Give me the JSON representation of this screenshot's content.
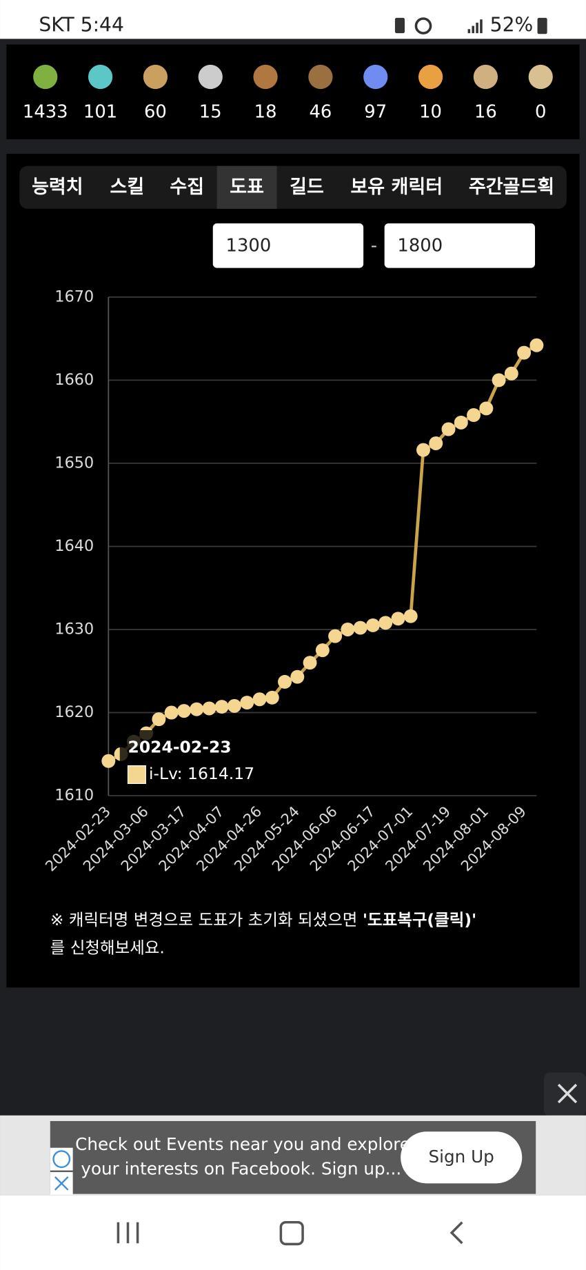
{
  "status_bar": {
    "carrier_time": "SKT 5:44",
    "battery": "52%"
  },
  "items": [
    1433,
    101,
    60,
    15,
    18,
    46,
    97,
    10,
    16,
    0
  ],
  "tabs": [
    "능력치",
    "스킬",
    "수집",
    "도표",
    "길드",
    "보유 캐릭터",
    "주간골드획"
  ],
  "range": {
    "min": "1300",
    "separator": "-",
    "max": "1800"
  },
  "chart_data": {
    "type": "line",
    "color": "#c9a44a",
    "categories": [
      "2024-02-23",
      null,
      null,
      "2024-03-06",
      null,
      null,
      "2024-03-17",
      null,
      null,
      "2024-04-07",
      null,
      null,
      "2024-04-26",
      null,
      null,
      "2024-05-24",
      null,
      null,
      "2024-06-06",
      null,
      null,
      "2024-06-17",
      null,
      null,
      "2024-07-01",
      null,
      null,
      "2024-07-19",
      null,
      null,
      "2024-08-01",
      null,
      null,
      "2024-08-09",
      null
    ],
    "values": [
      1614.17,
      1615.0,
      1616.5,
      1617.5,
      1619.2,
      1620.0,
      1620.2,
      1620.4,
      1620.5,
      1620.7,
      1620.8,
      1621.2,
      1621.6,
      1621.8,
      1623.7,
      1624.3,
      1626.0,
      1627.5,
      1629.2,
      1630.0,
      1630.2,
      1630.5,
      1630.8,
      1631.3,
      1631.6,
      1651.6,
      1652.4,
      1654.1,
      1654.9,
      1655.8,
      1656.6,
      1660.0,
      1660.8,
      1663.3,
      1664.2
    ],
    "ylim": [
      1610,
      1670
    ],
    "yticks": [
      1610,
      1620,
      1630,
      1640,
      1650,
      1660,
      1670
    ],
    "grid": true,
    "tooltip": {
      "title": "2024-02-23",
      "text": "i-Lv: 1614.17"
    }
  },
  "note": {
    "text": "※ 캐릭터명 변경으로 도표가 초기화 되셨으면 ",
    "link": "'도표복구(클릭)'",
    "line2": "를 신청해보세요."
  },
  "ad": {
    "line1": "Check out Events near you and explore",
    "line2": "your interests on Facebook. Sign up...",
    "button": "Sign Up"
  }
}
